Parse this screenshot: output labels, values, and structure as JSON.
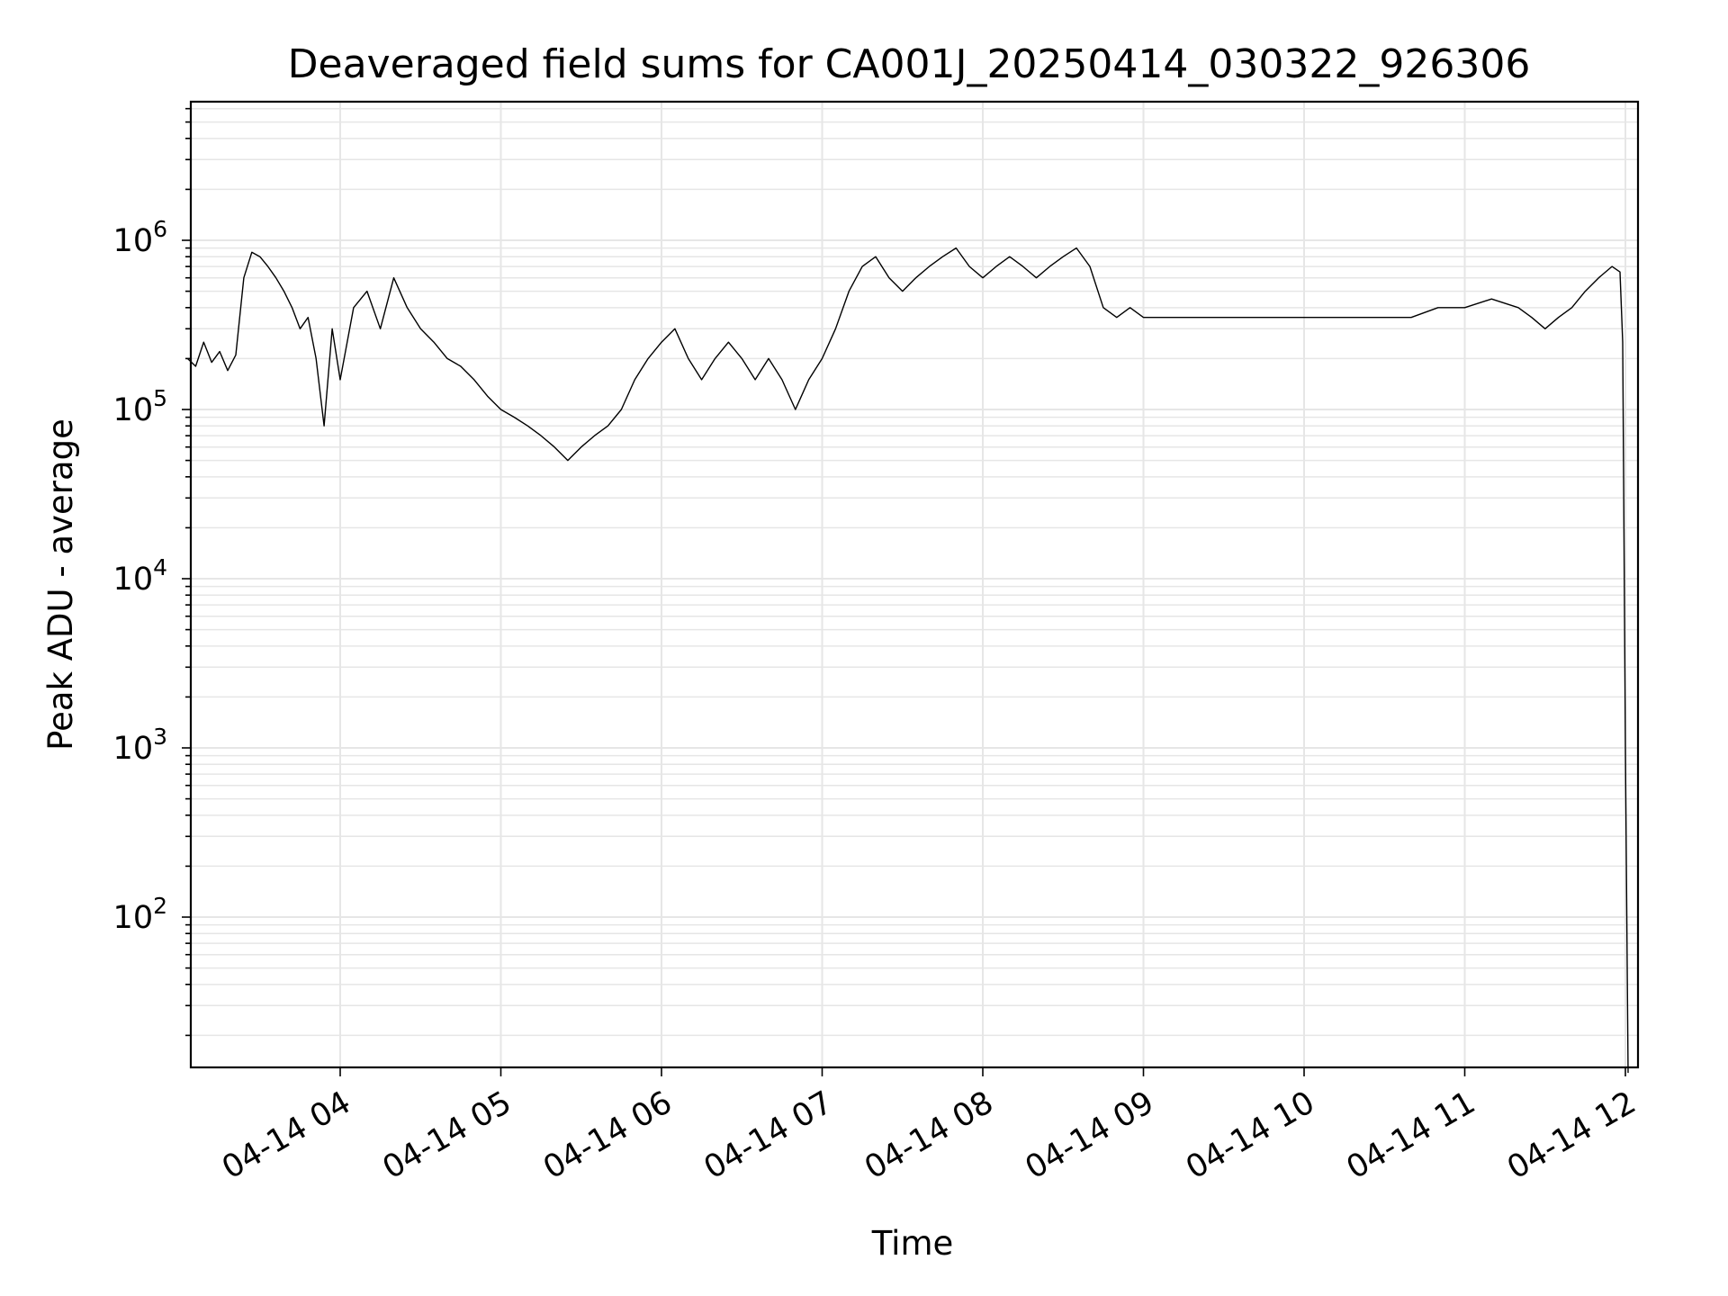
{
  "chart_data": {
    "type": "line",
    "title": "Deaveraged field sums for CA001J_20250414_030322_926306",
    "xlabel": "Time",
    "ylabel": "Peak ADU - average",
    "yscale": "log",
    "xlim": [
      "04-14 03:03",
      "04-14 12:02"
    ],
    "ylim": [
      12,
      6500000
    ],
    "x_ticks": [
      {
        "label": "04-14 04",
        "hour": 4
      },
      {
        "label": "04-14 05",
        "hour": 5
      },
      {
        "label": "04-14 06",
        "hour": 6
      },
      {
        "label": "04-14 07",
        "hour": 7
      },
      {
        "label": "04-14 08",
        "hour": 8
      },
      {
        "label": "04-14 09",
        "hour": 9
      },
      {
        "label": "04-14 10",
        "hour": 10
      },
      {
        "label": "04-14 11",
        "hour": 11
      },
      {
        "label": "04-14 12",
        "hour": 12
      }
    ],
    "y_ticks": [
      {
        "base": "10",
        "exp": "2",
        "value": 100
      },
      {
        "base": "10",
        "exp": "3",
        "value": 1000
      },
      {
        "base": "10",
        "exp": "4",
        "value": 10000
      },
      {
        "base": "10",
        "exp": "5",
        "value": 100000
      },
      {
        "base": "10",
        "exp": "6",
        "value": 1000000
      }
    ],
    "grid": true,
    "line_color": "#000000",
    "grid_color": "#e6e6e6",
    "series": [
      {
        "points": [
          [
            "03:03",
            200000
          ],
          [
            "03:06",
            180000
          ],
          [
            "03:09",
            250000
          ],
          [
            "03:12",
            190000
          ],
          [
            "03:15",
            220000
          ],
          [
            "03:18",
            170000
          ],
          [
            "03:21",
            210000
          ],
          [
            "03:24",
            600000
          ],
          [
            "03:27",
            850000
          ],
          [
            "03:30",
            800000
          ],
          [
            "03:33",
            700000
          ],
          [
            "03:36",
            600000
          ],
          [
            "03:39",
            500000
          ],
          [
            "03:42",
            400000
          ],
          [
            "03:45",
            300000
          ],
          [
            "03:48",
            350000
          ],
          [
            "03:51",
            200000
          ],
          [
            "03:54",
            80000
          ],
          [
            "03:57",
            300000
          ],
          [
            "04:00",
            150000
          ],
          [
            "04:05",
            400000
          ],
          [
            "04:10",
            500000
          ],
          [
            "04:15",
            300000
          ],
          [
            "04:20",
            600000
          ],
          [
            "04:25",
            400000
          ],
          [
            "04:30",
            300000
          ],
          [
            "04:35",
            250000
          ],
          [
            "04:40",
            200000
          ],
          [
            "04:45",
            180000
          ],
          [
            "04:50",
            150000
          ],
          [
            "04:55",
            120000
          ],
          [
            "05:00",
            100000
          ],
          [
            "05:05",
            90000
          ],
          [
            "05:10",
            80000
          ],
          [
            "05:15",
            70000
          ],
          [
            "05:20",
            60000
          ],
          [
            "05:25",
            50000
          ],
          [
            "05:30",
            60000
          ],
          [
            "05:35",
            70000
          ],
          [
            "05:40",
            80000
          ],
          [
            "05:45",
            100000
          ],
          [
            "05:50",
            150000
          ],
          [
            "05:55",
            200000
          ],
          [
            "06:00",
            250000
          ],
          [
            "06:05",
            300000
          ],
          [
            "06:10",
            200000
          ],
          [
            "06:15",
            150000
          ],
          [
            "06:20",
            200000
          ],
          [
            "06:25",
            250000
          ],
          [
            "06:30",
            200000
          ],
          [
            "06:35",
            150000
          ],
          [
            "06:40",
            200000
          ],
          [
            "06:45",
            150000
          ],
          [
            "06:50",
            100000
          ],
          [
            "06:55",
            150000
          ],
          [
            "07:00",
            200000
          ],
          [
            "07:05",
            300000
          ],
          [
            "07:10",
            500000
          ],
          [
            "07:15",
            700000
          ],
          [
            "07:20",
            800000
          ],
          [
            "07:25",
            600000
          ],
          [
            "07:30",
            500000
          ],
          [
            "07:35",
            600000
          ],
          [
            "07:40",
            700000
          ],
          [
            "07:45",
            800000
          ],
          [
            "07:50",
            900000
          ],
          [
            "07:55",
            700000
          ],
          [
            "08:00",
            600000
          ],
          [
            "08:05",
            700000
          ],
          [
            "08:10",
            800000
          ],
          [
            "08:15",
            700000
          ],
          [
            "08:20",
            600000
          ],
          [
            "08:25",
            700000
          ],
          [
            "08:30",
            800000
          ],
          [
            "08:35",
            900000
          ],
          [
            "08:40",
            700000
          ],
          [
            "08:45",
            400000
          ],
          [
            "08:50",
            350000
          ],
          [
            "08:55",
            400000
          ],
          [
            "09:00",
            350000
          ],
          [
            "09:10",
            350000
          ],
          [
            "09:20",
            350000
          ],
          [
            "09:30",
            350000
          ],
          [
            "09:40",
            350000
          ],
          [
            "09:50",
            350000
          ],
          [
            "10:00",
            350000
          ],
          [
            "10:10",
            350000
          ],
          [
            "10:20",
            350000
          ],
          [
            "10:30",
            350000
          ],
          [
            "10:40",
            350000
          ],
          [
            "10:50",
            400000
          ],
          [
            "11:00",
            400000
          ],
          [
            "11:10",
            450000
          ],
          [
            "11:20",
            400000
          ],
          [
            "11:25",
            350000
          ],
          [
            "11:30",
            300000
          ],
          [
            "11:35",
            350000
          ],
          [
            "11:40",
            400000
          ],
          [
            "11:45",
            500000
          ],
          [
            "11:50",
            600000
          ],
          [
            "11:55",
            700000
          ],
          [
            "11:58",
            650000
          ],
          [
            "11:59",
            250000
          ],
          [
            "12:00",
            1000
          ],
          [
            "12:01",
            12
          ]
        ]
      }
    ]
  }
}
